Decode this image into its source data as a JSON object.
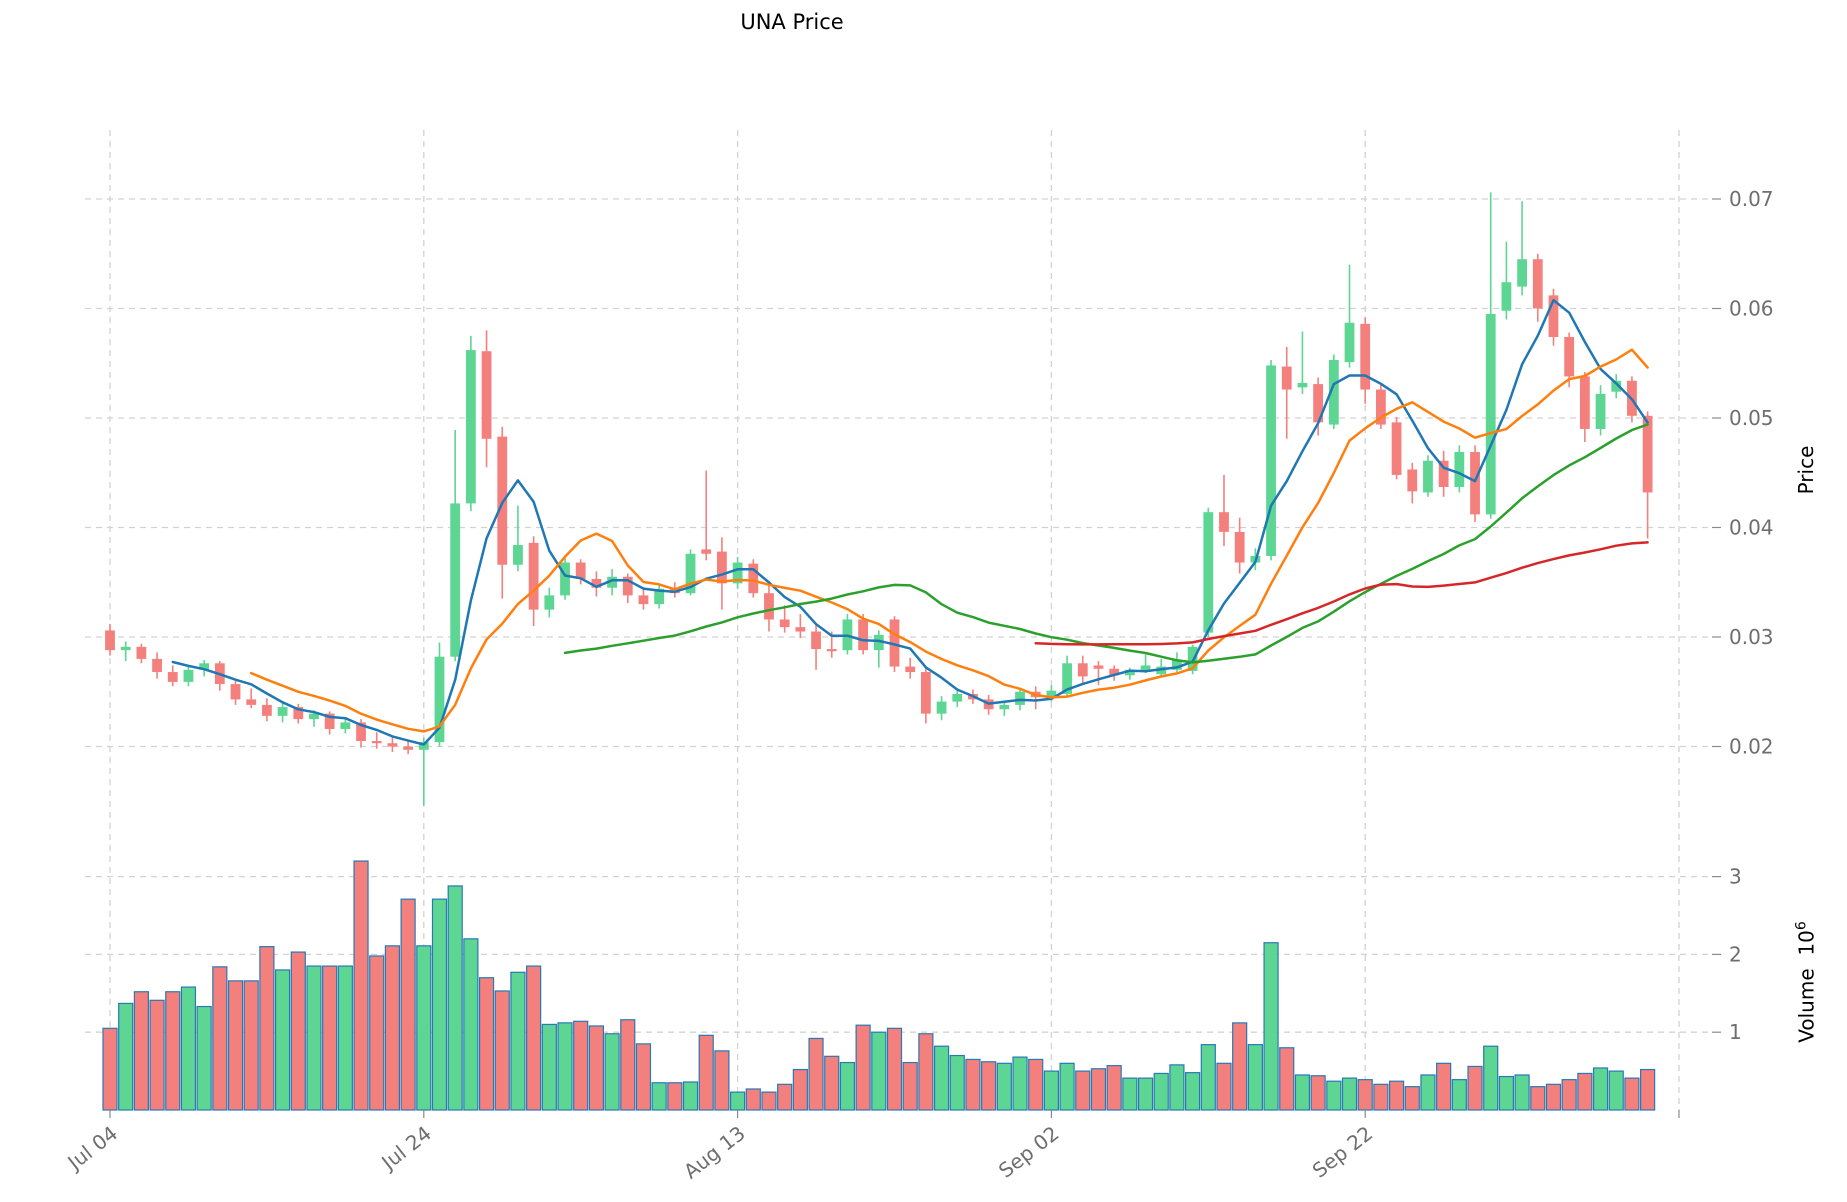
{
  "title": "UNA Price",
  "price_axis": {
    "label": "Price",
    "tick_labels": [
      "0.07",
      "0.06",
      "0.05",
      "0.04",
      "0.03",
      "0.02"
    ],
    "tick_values": [
      0.07,
      0.06,
      0.05,
      0.04,
      0.03,
      0.02
    ]
  },
  "volume_axis": {
    "label": "Volume",
    "unit_base": "10",
    "unit_exp": "6",
    "tick_labels": [
      "1",
      "2",
      "3"
    ],
    "tick_values": [
      1,
      2,
      3
    ]
  },
  "x_axis": {
    "tick_labels": [
      "Jul 04",
      "Jul 24",
      "Aug 13",
      "Sep 02",
      "Sep 22",
      ""
    ],
    "tick_indices": [
      0,
      20,
      40,
      60,
      80,
      100
    ]
  },
  "colors": {
    "up": "#5dd694",
    "down": "#f4807e",
    "volume_edge": "#2878b4",
    "grid": "#d2d2d2",
    "tick_text": "#6e6e6e",
    "ma_colors": [
      "#1f77b4",
      "#ff7f0e",
      "#2ca02c",
      "#d62728"
    ]
  },
  "chart_data": {
    "type": "candlestick",
    "title": "UNA Price",
    "ylabel": "Price",
    "ylabel_lower": "Volume 10^6",
    "legend_position": "none",
    "grid": "dashed",
    "ylim_price": [
      0.0135,
      0.0745
    ],
    "ylim_volume": [
      0,
      3.6
    ],
    "n_points": 99,
    "x_tick_labels": [
      "Jul 04",
      "Jul 24",
      "Aug 13",
      "Sep 02",
      "Sep 22"
    ],
    "moving_averages": [
      {
        "window": 5,
        "color": "#1f77b4"
      },
      {
        "window": 10,
        "color": "#ff7f0e"
      },
      {
        "window": 30,
        "color": "#2ca02c"
      },
      {
        "window": 60,
        "color": "#d62728"
      }
    ],
    "open": [
      0.0306,
      0.0288,
      0.0291,
      0.028,
      0.0268,
      0.0259,
      0.027,
      0.0276,
      0.0257,
      0.0243,
      0.0238,
      0.0228,
      0.0236,
      0.0225,
      0.023,
      0.0216,
      0.0222,
      0.0205,
      0.0203,
      0.02,
      0.0197,
      0.0204,
      0.0282,
      0.0422,
      0.0561,
      0.0483,
      0.0366,
      0.0386,
      0.0325,
      0.0338,
      0.0368,
      0.0353,
      0.0345,
      0.0355,
      0.0338,
      0.033,
      0.0344,
      0.034,
      0.038,
      0.0378,
      0.0349,
      0.0367,
      0.034,
      0.0316,
      0.0309,
      0.0305,
      0.0289,
      0.0288,
      0.0316,
      0.0288,
      0.0316,
      0.0273,
      0.0268,
      0.023,
      0.0241,
      0.0248,
      0.0243,
      0.0234,
      0.0238,
      0.025,
      0.0245,
      0.0248,
      0.0276,
      0.0274,
      0.0271,
      0.0265,
      0.027,
      0.0266,
      0.027,
      0.0269,
      0.0304,
      0.0414,
      0.0396,
      0.0368,
      0.0374,
      0.0547,
      0.0528,
      0.0531,
      0.0494,
      0.0551,
      0.0586,
      0.0526,
      0.0496,
      0.0453,
      0.0432,
      0.0461,
      0.0437,
      0.0469,
      0.0412,
      0.0598,
      0.062,
      0.0645,
      0.0612,
      0.0574,
      0.0538,
      0.049,
      0.0524,
      0.0534,
      0.0502
    ],
    "high": [
      0.0312,
      0.0296,
      0.0294,
      0.0286,
      0.0274,
      0.0273,
      0.0279,
      0.0278,
      0.0261,
      0.0253,
      0.0244,
      0.024,
      0.0239,
      0.0233,
      0.0232,
      0.0226,
      0.0225,
      0.0213,
      0.0209,
      0.0206,
      0.0208,
      0.0295,
      0.0489,
      0.0575,
      0.058,
      0.0492,
      0.042,
      0.0392,
      0.0345,
      0.0372,
      0.0371,
      0.036,
      0.0362,
      0.0358,
      0.0344,
      0.0348,
      0.035,
      0.038,
      0.0452,
      0.0391,
      0.0373,
      0.0371,
      0.0351,
      0.0329,
      0.0321,
      0.0311,
      0.0305,
      0.0321,
      0.0321,
      0.0306,
      0.0319,
      0.0281,
      0.0272,
      0.0246,
      0.0253,
      0.0252,
      0.0247,
      0.0241,
      0.0252,
      0.0255,
      0.0256,
      0.0283,
      0.0283,
      0.0278,
      0.0274,
      0.0272,
      0.0284,
      0.028,
      0.0286,
      0.0293,
      0.0418,
      0.0448,
      0.0409,
      0.0381,
      0.0553,
      0.0565,
      0.0579,
      0.0537,
      0.0558,
      0.064,
      0.0592,
      0.0531,
      0.0501,
      0.0459,
      0.0466,
      0.047,
      0.0475,
      0.0475,
      0.0706,
      0.0661,
      0.0698,
      0.065,
      0.0618,
      0.0578,
      0.0542,
      0.053,
      0.054,
      0.0538,
      0.0506
    ],
    "low": [
      0.0283,
      0.0278,
      0.0276,
      0.0262,
      0.0255,
      0.0255,
      0.0264,
      0.0251,
      0.0238,
      0.0235,
      0.0223,
      0.0222,
      0.0221,
      0.0218,
      0.0211,
      0.0212,
      0.0199,
      0.0198,
      0.0195,
      0.0193,
      0.0146,
      0.02,
      0.0278,
      0.0415,
      0.0455,
      0.0335,
      0.036,
      0.031,
      0.0318,
      0.0334,
      0.0348,
      0.0337,
      0.0338,
      0.0331,
      0.0325,
      0.0326,
      0.0336,
      0.0338,
      0.037,
      0.0325,
      0.0344,
      0.0336,
      0.0305,
      0.0304,
      0.0299,
      0.027,
      0.0281,
      0.0284,
      0.0284,
      0.0272,
      0.0268,
      0.0262,
      0.0221,
      0.0224,
      0.0236,
      0.0239,
      0.0229,
      0.0228,
      0.0233,
      0.0234,
      0.0241,
      0.0245,
      0.0258,
      0.0256,
      0.026,
      0.0261,
      0.0267,
      0.0263,
      0.0268,
      0.0266,
      0.03,
      0.0383,
      0.0358,
      0.0361,
      0.037,
      0.0481,
      0.0522,
      0.0484,
      0.049,
      0.0546,
      0.0513,
      0.049,
      0.0444,
      0.0422,
      0.0428,
      0.0428,
      0.0432,
      0.0405,
      0.0408,
      0.059,
      0.0612,
      0.0588,
      0.0566,
      0.0528,
      0.0478,
      0.0484,
      0.0518,
      0.0496,
      0.039
    ],
    "close": [
      0.0288,
      0.0291,
      0.028,
      0.0268,
      0.0259,
      0.027,
      0.0276,
      0.0257,
      0.0243,
      0.0238,
      0.0228,
      0.0236,
      0.0225,
      0.023,
      0.0216,
      0.0222,
      0.0205,
      0.0203,
      0.02,
      0.0197,
      0.0204,
      0.0282,
      0.0422,
      0.0562,
      0.0481,
      0.0366,
      0.0384,
      0.0325,
      0.0338,
      0.0368,
      0.0353,
      0.0345,
      0.0355,
      0.0338,
      0.033,
      0.0344,
      0.034,
      0.0376,
      0.0376,
      0.0349,
      0.0368,
      0.034,
      0.0316,
      0.0309,
      0.0305,
      0.0289,
      0.0287,
      0.0316,
      0.0288,
      0.0302,
      0.0273,
      0.0268,
      0.023,
      0.0241,
      0.0248,
      0.0243,
      0.0234,
      0.0238,
      0.025,
      0.0245,
      0.0251,
      0.0276,
      0.0264,
      0.0271,
      0.0265,
      0.027,
      0.0274,
      0.0273,
      0.0279,
      0.0291,
      0.0414,
      0.0396,
      0.0368,
      0.0374,
      0.0548,
      0.0526,
      0.0532,
      0.0496,
      0.0553,
      0.0587,
      0.0526,
      0.0494,
      0.0448,
      0.0433,
      0.0461,
      0.0437,
      0.0469,
      0.0412,
      0.0595,
      0.0624,
      0.0645,
      0.06,
      0.0574,
      0.0538,
      0.049,
      0.0522,
      0.0534,
      0.0502,
      0.0432
    ],
    "volume": [
      1.05,
      1.37,
      1.52,
      1.41,
      1.52,
      1.58,
      1.33,
      1.84,
      1.66,
      1.66,
      2.1,
      1.8,
      2.03,
      1.85,
      1.85,
      1.85,
      3.2,
      1.98,
      2.11,
      2.71,
      2.11,
      2.71,
      2.88,
      2.2,
      1.7,
      1.53,
      1.77,
      1.85,
      1.1,
      1.12,
      1.14,
      1.08,
      0.98,
      1.16,
      0.85,
      0.35,
      0.35,
      0.36,
      0.96,
      0.76,
      0.23,
      0.27,
      0.23,
      0.33,
      0.52,
      0.92,
      0.69,
      0.61,
      1.09,
      1.0,
      1.05,
      0.61,
      0.98,
      0.82,
      0.7,
      0.65,
      0.62,
      0.6,
      0.68,
      0.65,
      0.5,
      0.6,
      0.5,
      0.53,
      0.57,
      0.41,
      0.41,
      0.47,
      0.58,
      0.48,
      0.84,
      0.6,
      1.12,
      0.84,
      2.15,
      0.8,
      0.45,
      0.44,
      0.37,
      0.41,
      0.39,
      0.33,
      0.37,
      0.3,
      0.45,
      0.6,
      0.39,
      0.56,
      0.82,
      0.43,
      0.45,
      0.3,
      0.33,
      0.39,
      0.47,
      0.54,
      0.5,
      0.41,
      0.52
    ]
  }
}
